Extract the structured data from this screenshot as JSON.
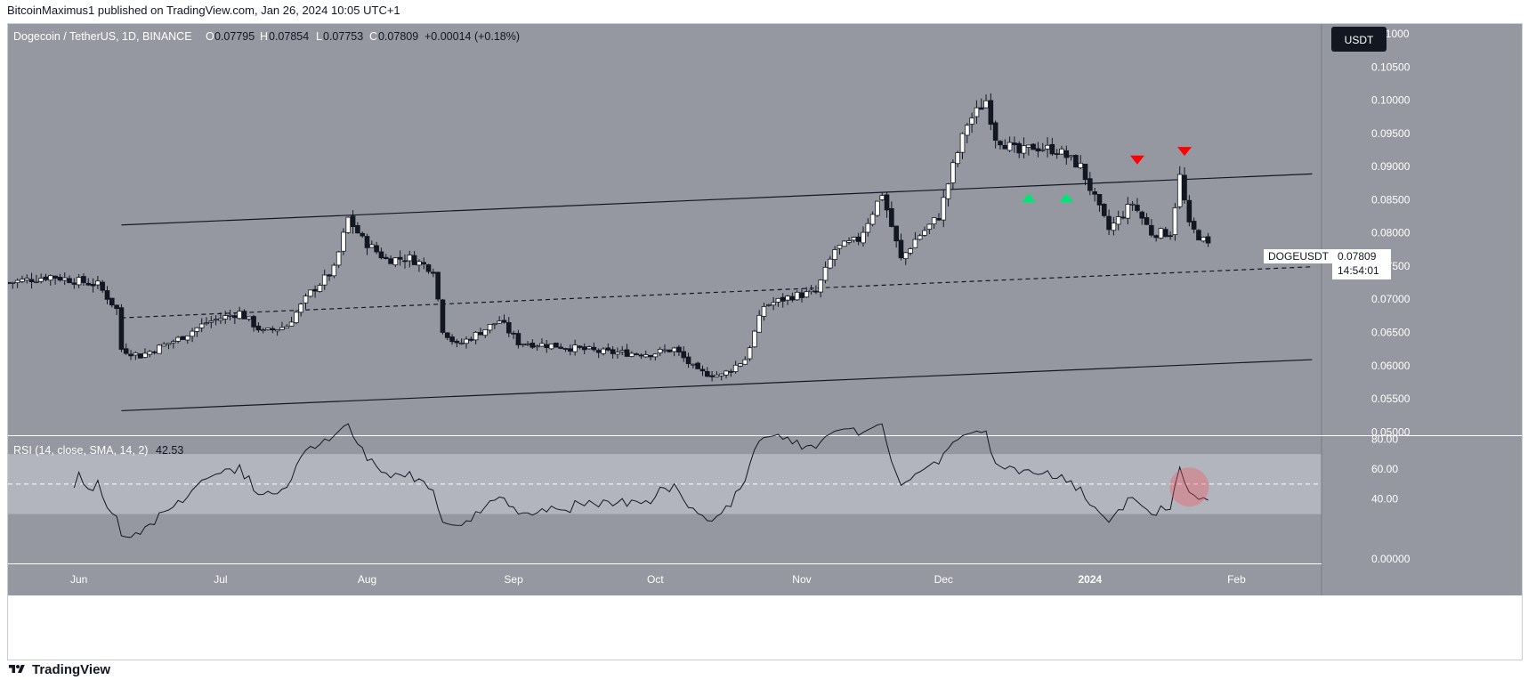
{
  "header": {
    "publisher": "BitcoinMaximus1 published on TradingView.com, Jan 26, 2024 10:05 UTC+1"
  },
  "footer": {
    "brand": "TradingView"
  },
  "symbol": {
    "name": "Dogecoin / TetherUS, 1D, BINANCE",
    "o_label": "O",
    "o": "0.07795",
    "h_label": "H",
    "h": "0.07854",
    "l_label": "L",
    "l": "0.07753",
    "c_label": "C",
    "c": "0.07809",
    "change": "+0.00014 (+0.18%)",
    "currency": "USDT",
    "ticker_tag": "DOGEUSDT",
    "last_price": "0.07809",
    "countdown": "14:54:01"
  },
  "colors": {
    "page_bg": "#ffffff",
    "panel_bg": "#9598a1",
    "rsi_band": "#b2b5be",
    "candle_up": "#ffffff",
    "candle_down": "#131722",
    "wick": "#131722",
    "marker_green": "#00e676",
    "marker_red": "#ff0000",
    "highlight": "#f7525f"
  },
  "chart_data": [
    {
      "type": "candlestick",
      "title": "Dogecoin / TetherUS, 1D, BINANCE",
      "x_ticks": [
        "Jun",
        "Jul",
        "Aug",
        "Sep",
        "Oct",
        "Nov",
        "Dec",
        "2024",
        "Feb"
      ],
      "y_ticks": [
        "0.11000",
        "0.10500",
        "0.10000",
        "0.09500",
        "0.09000",
        "0.08500",
        "0.08000",
        "0.07500",
        "0.07000",
        "0.06500",
        "0.06000",
        "0.05500",
        "0.05000"
      ],
      "ylim": [
        0.0495,
        0.1115
      ],
      "xlim": [
        "2023-05-17",
        "2024-02-19"
      ],
      "grid": false,
      "anchors": [
        [
          "2023-05-17",
          0.0725
        ],
        [
          "2023-05-26",
          0.0735
        ],
        [
          "2023-06-05",
          0.0722
        ],
        [
          "2023-06-09",
          0.0685
        ],
        [
          "2023-06-10",
          0.0625
        ],
        [
          "2023-06-14",
          0.0615
        ],
        [
          "2023-06-22",
          0.064
        ],
        [
          "2023-06-28",
          0.0665
        ],
        [
          "2023-07-05",
          0.068
        ],
        [
          "2023-07-10",
          0.065
        ],
        [
          "2023-07-15",
          0.066
        ],
        [
          "2023-07-20",
          0.071
        ],
        [
          "2023-07-25",
          0.0745
        ],
        [
          "2023-07-28",
          0.0822
        ],
        [
          "2023-07-31",
          0.079
        ],
        [
          "2023-08-05",
          0.076
        ],
        [
          "2023-08-10",
          0.0762
        ],
        [
          "2023-08-15",
          0.0745
        ],
        [
          "2023-08-17",
          0.0655
        ],
        [
          "2023-08-20",
          0.063
        ],
        [
          "2023-08-29",
          0.0668
        ],
        [
          "2023-09-02",
          0.0635
        ],
        [
          "2023-09-10",
          0.063
        ],
        [
          "2023-09-20",
          0.062
        ],
        [
          "2023-09-30",
          0.0618
        ],
        [
          "2023-10-05",
          0.0625
        ],
        [
          "2023-10-10",
          0.059
        ],
        [
          "2023-10-15",
          0.0585
        ],
        [
          "2023-10-20",
          0.061
        ],
        [
          "2023-10-24",
          0.069
        ],
        [
          "2023-10-30",
          0.0705
        ],
        [
          "2023-11-04",
          0.071
        ],
        [
          "2023-11-08",
          0.0775
        ],
        [
          "2023-11-13",
          0.079
        ],
        [
          "2023-11-18",
          0.086
        ],
        [
          "2023-11-22",
          0.076
        ],
        [
          "2023-11-25",
          0.079
        ],
        [
          "2023-11-30",
          0.0825
        ],
        [
          "2023-12-03",
          0.09
        ],
        [
          "2023-12-06",
          0.0965
        ],
        [
          "2023-12-10",
          0.1
        ],
        [
          "2023-12-12",
          0.0945
        ],
        [
          "2023-12-17",
          0.092
        ],
        [
          "2023-12-20",
          0.093
        ],
        [
          "2023-12-25",
          0.0925
        ],
        [
          "2023-12-30",
          0.09
        ],
        [
          "2024-01-03",
          0.0835
        ],
        [
          "2024-01-05",
          0.0805
        ],
        [
          "2024-01-10",
          0.0845
        ],
        [
          "2024-01-14",
          0.08
        ],
        [
          "2024-01-18",
          0.08
        ],
        [
          "2024-01-20",
          0.0885
        ],
        [
          "2024-01-22",
          0.081
        ],
        [
          "2024-01-26",
          0.0781
        ]
      ],
      "lines": [
        {
          "style": "solid",
          "from": [
            "2023-06-10",
            0.0812
          ],
          "to": [
            "2024-02-17",
            0.0889
          ]
        },
        {
          "style": "dashed",
          "from": [
            "2023-06-10",
            0.0672
          ],
          "to": [
            "2024-02-17",
            0.0749
          ]
        },
        {
          "style": "solid",
          "from": [
            "2023-06-10",
            0.0532
          ],
          "to": [
            "2024-02-17",
            0.0609
          ]
        }
      ],
      "markers": [
        {
          "kind": "up",
          "color": "green",
          "date": "2023-12-19",
          "price": 0.0853
        },
        {
          "kind": "up",
          "color": "green",
          "date": "2023-12-27",
          "price": 0.0853
        },
        {
          "kind": "down",
          "color": "red",
          "date": "2024-01-11",
          "price": 0.091
        },
        {
          "kind": "down",
          "color": "red",
          "date": "2024-01-21",
          "price": 0.0923
        }
      ]
    },
    {
      "type": "line",
      "title": "RSI (14, close, SMA, 14, 2)",
      "value_label": "42.53",
      "y_ticks": [
        "80.00",
        "60.00",
        "40.00",
        "0.00000"
      ],
      "ylim": [
        -3,
        82
      ],
      "band": [
        30,
        70
      ],
      "midline": 50,
      "highlight": {
        "date": "2024-01-22",
        "value": 48
      }
    }
  ]
}
